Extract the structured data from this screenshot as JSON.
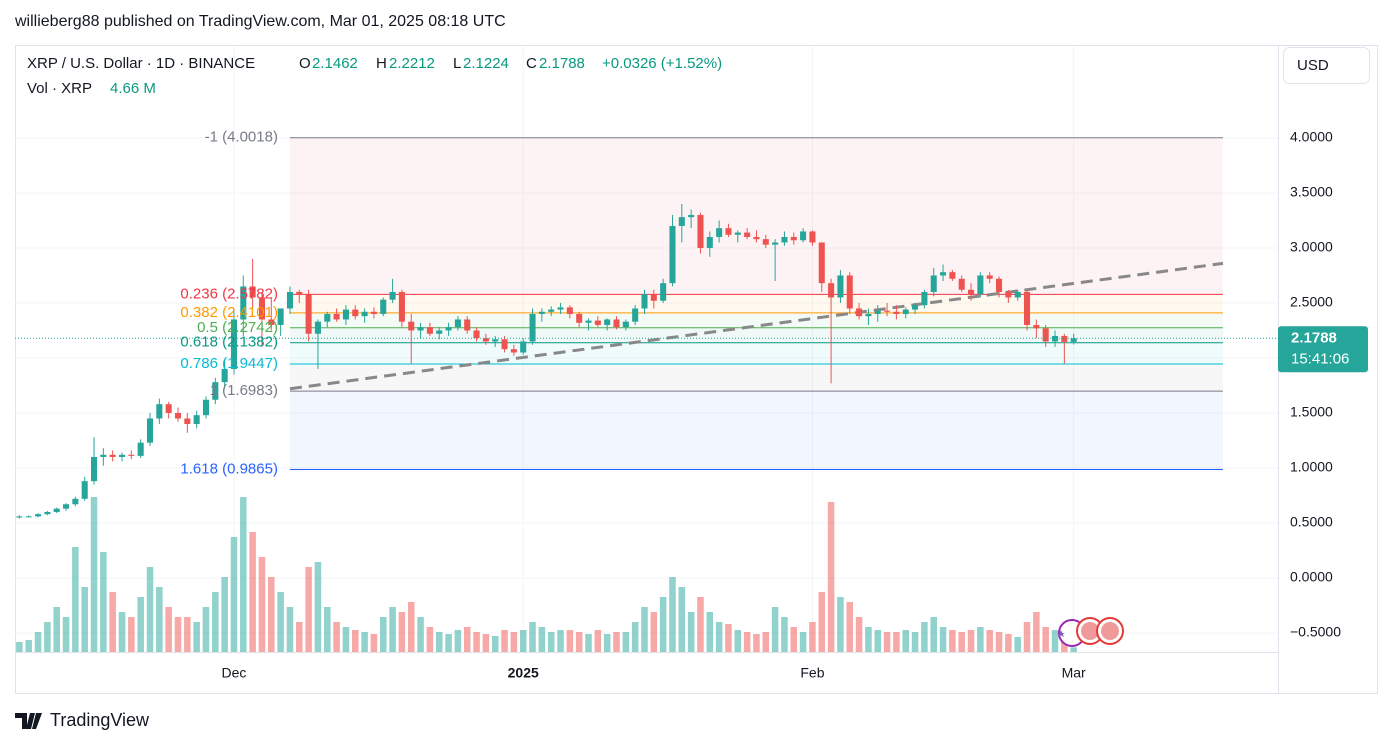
{
  "header": {
    "text": "willieberg88 published on TradingView.com, Mar 01, 2025 08:18 UTC"
  },
  "footer": {
    "logo": "TradingView"
  },
  "chart_data": {
    "type": "candlestick",
    "symbol": "XRP / U.S. Dollar · 1D · BINANCE",
    "ohlc_labels": [
      "O",
      "H",
      "L",
      "C"
    ],
    "change": "+0.0326 (+1.52%)",
    "volume_title": "Vol · XRP",
    "volume_value_label": "4.66 M",
    "currency": "USD",
    "countdown": "15:41:06",
    "up_color": "#26a69a",
    "down_color": "#ef5350",
    "grid": true,
    "xlim": [
      -23.47,
      111.9
    ],
    "ylim": [
      -0.673,
      4.827
    ],
    "xticks": [
      {
        "value": 0,
        "label": "Dec"
      },
      {
        "value": 31,
        "label": "2025"
      },
      {
        "value": 62,
        "label": "Feb"
      },
      {
        "value": 90,
        "label": "Mar"
      }
    ],
    "yticks": [
      {
        "value": -0.5,
        "label": "−0.5000"
      },
      {
        "value": 0,
        "label": "0.0000"
      },
      {
        "value": 0.5,
        "label": "0.5000"
      },
      {
        "value": 1,
        "label": "1.0000"
      },
      {
        "value": 1.5,
        "label": "1.5000"
      },
      {
        "value": 2,
        "label": "2.0000"
      },
      {
        "value": 2.5,
        "label": "2.5000"
      },
      {
        "value": 3,
        "label": "3.0000"
      },
      {
        "value": 3.5,
        "label": "3.5000"
      },
      {
        "value": 4,
        "label": "4.0000"
      }
    ],
    "fib_x": [
      6,
      106
    ],
    "fib_levels": [
      {
        "label": "-1 (4.0018)",
        "value": 4.0018,
        "color": "#787b86"
      },
      {
        "label": "0.236 (2.5782)",
        "value": 2.5782,
        "color": "#f23645"
      },
      {
        "label": "0.382 (2.4101)",
        "value": 2.4101,
        "color": "#ff9800"
      },
      {
        "label": "0.5 (2.2742)",
        "value": 2.2742,
        "color": "#4caf50"
      },
      {
        "label": "0.618 (2.1382)",
        "value": 2.1382,
        "color": "#089981"
      },
      {
        "label": "0.786 (1.9447)",
        "value": 1.9447,
        "color": "#00bcd4"
      },
      {
        "label": "1 (1.6983)",
        "value": 1.6983,
        "color": "#787b86"
      },
      {
        "label": "1.618 (0.9865)",
        "value": 0.9865,
        "color": "#2962ff"
      }
    ],
    "trend_line": {
      "x": [
        6,
        106
      ],
      "y": [
        1.72,
        2.86
      ],
      "color": "#888888"
    },
    "candles": [
      {
        "x": -23,
        "o": 0.55,
        "h": 0.57,
        "l": 0.54,
        "c": 0.56,
        "v": 10
      },
      {
        "x": -22,
        "o": 0.56,
        "h": 0.57,
        "l": 0.55,
        "c": 0.56,
        "v": 12
      },
      {
        "x": -21,
        "o": 0.56,
        "h": 0.59,
        "l": 0.55,
        "c": 0.58,
        "v": 20
      },
      {
        "x": -20,
        "o": 0.58,
        "h": 0.61,
        "l": 0.57,
        "c": 0.6,
        "v": 30
      },
      {
        "x": -19,
        "o": 0.6,
        "h": 0.64,
        "l": 0.59,
        "c": 0.63,
        "v": 45
      },
      {
        "x": -18,
        "o": 0.63,
        "h": 0.68,
        "l": 0.61,
        "c": 0.67,
        "v": 35
      },
      {
        "x": -17,
        "o": 0.67,
        "h": 0.74,
        "l": 0.65,
        "c": 0.72,
        "v": 105
      },
      {
        "x": -16,
        "o": 0.72,
        "h": 0.92,
        "l": 0.7,
        "c": 0.88,
        "v": 65
      },
      {
        "x": -15,
        "o": 0.88,
        "h": 1.28,
        "l": 0.85,
        "c": 1.1,
        "v": 155
      },
      {
        "x": -14,
        "o": 1.1,
        "h": 1.18,
        "l": 1.02,
        "c": 1.12,
        "v": 100
      },
      {
        "x": -13,
        "o": 1.12,
        "h": 1.16,
        "l": 1.06,
        "c": 1.1,
        "v": 60
      },
      {
        "x": -12,
        "o": 1.1,
        "h": 1.14,
        "l": 1.06,
        "c": 1.12,
        "v": 40
      },
      {
        "x": -11,
        "o": 1.12,
        "h": 1.16,
        "l": 1.08,
        "c": 1.11,
        "v": 35
      },
      {
        "x": -10,
        "o": 1.11,
        "h": 1.26,
        "l": 1.09,
        "c": 1.23,
        "v": 55
      },
      {
        "x": -9,
        "o": 1.23,
        "h": 1.5,
        "l": 1.2,
        "c": 1.45,
        "v": 85
      },
      {
        "x": -8,
        "o": 1.45,
        "h": 1.63,
        "l": 1.4,
        "c": 1.58,
        "v": 65
      },
      {
        "x": -7,
        "o": 1.58,
        "h": 1.6,
        "l": 1.45,
        "c": 1.5,
        "v": 45
      },
      {
        "x": -6,
        "o": 1.5,
        "h": 1.55,
        "l": 1.42,
        "c": 1.45,
        "v": 35
      },
      {
        "x": -5,
        "o": 1.45,
        "h": 1.5,
        "l": 1.32,
        "c": 1.4,
        "v": 35
      },
      {
        "x": -4,
        "o": 1.4,
        "h": 1.52,
        "l": 1.36,
        "c": 1.48,
        "v": 30
      },
      {
        "x": -3,
        "o": 1.48,
        "h": 1.65,
        "l": 1.45,
        "c": 1.62,
        "v": 45
      },
      {
        "x": -2,
        "o": 1.62,
        "h": 1.82,
        "l": 1.58,
        "c": 1.78,
        "v": 60
      },
      {
        "x": -1,
        "o": 1.78,
        "h": 1.98,
        "l": 1.72,
        "c": 1.9,
        "v": 75
      },
      {
        "x": 0,
        "o": 1.9,
        "h": 2.45,
        "l": 1.85,
        "c": 2.35,
        "v": 115
      },
      {
        "x": 1,
        "o": 2.35,
        "h": 2.75,
        "l": 2.2,
        "c": 2.65,
        "v": 155
      },
      {
        "x": 2,
        "o": 2.65,
        "h": 2.9,
        "l": 2.45,
        "c": 2.55,
        "v": 120
      },
      {
        "x": 3,
        "o": 2.55,
        "h": 2.6,
        "l": 2.1,
        "c": 2.35,
        "v": 95
      },
      {
        "x": 4,
        "o": 2.35,
        "h": 2.55,
        "l": 2.25,
        "c": 2.3,
        "v": 75
      },
      {
        "x": 5,
        "o": 2.3,
        "h": 2.45,
        "l": 2.2,
        "c": 2.45,
        "v": 60
      },
      {
        "x": 6,
        "o": 2.45,
        "h": 2.65,
        "l": 2.4,
        "c": 2.6,
        "v": 45
      },
      {
        "x": 7,
        "o": 2.6,
        "h": 2.62,
        "l": 2.5,
        "c": 2.58,
        "v": 30
      },
      {
        "x": 8,
        "o": 2.58,
        "h": 2.62,
        "l": 2.15,
        "c": 2.22,
        "v": 85
      },
      {
        "x": 9,
        "o": 2.22,
        "h": 2.35,
        "l": 1.9,
        "c": 2.33,
        "v": 90
      },
      {
        "x": 10,
        "o": 2.33,
        "h": 2.42,
        "l": 2.28,
        "c": 2.4,
        "v": 45
      },
      {
        "x": 11,
        "o": 2.4,
        "h": 2.45,
        "l": 2.33,
        "c": 2.35,
        "v": 30
      },
      {
        "x": 12,
        "o": 2.35,
        "h": 2.48,
        "l": 2.3,
        "c": 2.44,
        "v": 25
      },
      {
        "x": 13,
        "o": 2.44,
        "h": 2.48,
        "l": 2.35,
        "c": 2.38,
        "v": 22
      },
      {
        "x": 14,
        "o": 2.38,
        "h": 2.45,
        "l": 2.32,
        "c": 2.42,
        "v": 20
      },
      {
        "x": 15,
        "o": 2.42,
        "h": 2.46,
        "l": 2.36,
        "c": 2.4,
        "v": 18
      },
      {
        "x": 16,
        "o": 2.4,
        "h": 2.55,
        "l": 2.38,
        "c": 2.53,
        "v": 35
      },
      {
        "x": 17,
        "o": 2.53,
        "h": 2.72,
        "l": 2.5,
        "c": 2.6,
        "v": 45
      },
      {
        "x": 18,
        "o": 2.6,
        "h": 2.62,
        "l": 2.28,
        "c": 2.33,
        "v": 40
      },
      {
        "x": 19,
        "o": 2.33,
        "h": 2.4,
        "l": 1.95,
        "c": 2.25,
        "v": 50
      },
      {
        "x": 20,
        "o": 2.25,
        "h": 2.32,
        "l": 2.18,
        "c": 2.28,
        "v": 35
      },
      {
        "x": 21,
        "o": 2.28,
        "h": 2.32,
        "l": 2.2,
        "c": 2.22,
        "v": 25
      },
      {
        "x": 22,
        "o": 2.22,
        "h": 2.28,
        "l": 2.17,
        "c": 2.25,
        "v": 20
      },
      {
        "x": 23,
        "o": 2.25,
        "h": 2.32,
        "l": 2.2,
        "c": 2.28,
        "v": 18
      },
      {
        "x": 24,
        "o": 2.28,
        "h": 2.38,
        "l": 2.25,
        "c": 2.35,
        "v": 22
      },
      {
        "x": 25,
        "o": 2.35,
        "h": 2.38,
        "l": 2.22,
        "c": 2.25,
        "v": 25
      },
      {
        "x": 26,
        "o": 2.25,
        "h": 2.28,
        "l": 2.15,
        "c": 2.18,
        "v": 20
      },
      {
        "x": 27,
        "o": 2.18,
        "h": 2.22,
        "l": 2.12,
        "c": 2.15,
        "v": 18
      },
      {
        "x": 28,
        "o": 2.15,
        "h": 2.2,
        "l": 2.1,
        "c": 2.17,
        "v": 16
      },
      {
        "x": 29,
        "o": 2.17,
        "h": 2.2,
        "l": 2.05,
        "c": 2.08,
        "v": 22
      },
      {
        "x": 30,
        "o": 2.08,
        "h": 2.12,
        "l": 2.02,
        "c": 2.05,
        "v": 20
      },
      {
        "x": 31,
        "o": 2.05,
        "h": 2.18,
        "l": 2.03,
        "c": 2.15,
        "v": 22
      },
      {
        "x": 32,
        "o": 2.15,
        "h": 2.45,
        "l": 2.12,
        "c": 2.4,
        "v": 30
      },
      {
        "x": 33,
        "o": 2.4,
        "h": 2.45,
        "l": 2.33,
        "c": 2.42,
        "v": 25
      },
      {
        "x": 34,
        "o": 2.42,
        "h": 2.47,
        "l": 2.38,
        "c": 2.44,
        "v": 20
      },
      {
        "x": 35,
        "o": 2.44,
        "h": 2.5,
        "l": 2.4,
        "c": 2.46,
        "v": 22
      },
      {
        "x": 36,
        "o": 2.46,
        "h": 2.48,
        "l": 2.36,
        "c": 2.4,
        "v": 22
      },
      {
        "x": 37,
        "o": 2.4,
        "h": 2.42,
        "l": 2.28,
        "c": 2.32,
        "v": 20
      },
      {
        "x": 38,
        "o": 2.32,
        "h": 2.36,
        "l": 2.25,
        "c": 2.34,
        "v": 18
      },
      {
        "x": 39,
        "o": 2.34,
        "h": 2.38,
        "l": 2.28,
        "c": 2.3,
        "v": 22
      },
      {
        "x": 40,
        "o": 2.3,
        "h": 2.36,
        "l": 2.25,
        "c": 2.35,
        "v": 18
      },
      {
        "x": 41,
        "o": 2.35,
        "h": 2.38,
        "l": 2.26,
        "c": 2.28,
        "v": 20
      },
      {
        "x": 42,
        "o": 2.28,
        "h": 2.35,
        "l": 2.25,
        "c": 2.33,
        "v": 20
      },
      {
        "x": 43,
        "o": 2.33,
        "h": 2.48,
        "l": 2.3,
        "c": 2.45,
        "v": 30
      },
      {
        "x": 44,
        "o": 2.45,
        "h": 2.62,
        "l": 2.4,
        "c": 2.58,
        "v": 45
      },
      {
        "x": 45,
        "o": 2.58,
        "h": 2.62,
        "l": 2.45,
        "c": 2.52,
        "v": 40
      },
      {
        "x": 46,
        "o": 2.52,
        "h": 2.72,
        "l": 2.5,
        "c": 2.68,
        "v": 55
      },
      {
        "x": 47,
        "o": 2.68,
        "h": 3.3,
        "l": 2.65,
        "c": 3.2,
        "v": 75
      },
      {
        "x": 48,
        "o": 3.2,
        "h": 3.4,
        "l": 3.05,
        "c": 3.28,
        "v": 65
      },
      {
        "x": 49,
        "o": 3.28,
        "h": 3.35,
        "l": 3.18,
        "c": 3.3,
        "v": 40
      },
      {
        "x": 50,
        "o": 3.3,
        "h": 3.32,
        "l": 2.95,
        "c": 3.0,
        "v": 55
      },
      {
        "x": 51,
        "o": 3.0,
        "h": 3.15,
        "l": 2.92,
        "c": 3.1,
        "v": 40
      },
      {
        "x": 52,
        "o": 3.1,
        "h": 3.25,
        "l": 3.05,
        "c": 3.18,
        "v": 30
      },
      {
        "x": 53,
        "o": 3.18,
        "h": 3.22,
        "l": 3.1,
        "c": 3.12,
        "v": 28
      },
      {
        "x": 54,
        "o": 3.12,
        "h": 3.16,
        "l": 3.05,
        "c": 3.14,
        "v": 22
      },
      {
        "x": 55,
        "o": 3.14,
        "h": 3.18,
        "l": 3.08,
        "c": 3.1,
        "v": 20
      },
      {
        "x": 56,
        "o": 3.1,
        "h": 3.16,
        "l": 3.05,
        "c": 3.08,
        "v": 18
      },
      {
        "x": 57,
        "o": 3.08,
        "h": 3.12,
        "l": 3.0,
        "c": 3.03,
        "v": 20
      },
      {
        "x": 58,
        "o": 3.03,
        "h": 3.08,
        "l": 2.7,
        "c": 3.05,
        "v": 45
      },
      {
        "x": 59,
        "o": 3.05,
        "h": 3.15,
        "l": 3.02,
        "c": 3.1,
        "v": 35
      },
      {
        "x": 60,
        "o": 3.1,
        "h": 3.14,
        "l": 3.03,
        "c": 3.07,
        "v": 25
      },
      {
        "x": 61,
        "o": 3.07,
        "h": 3.18,
        "l": 3.05,
        "c": 3.15,
        "v": 20
      },
      {
        "x": 62,
        "o": 3.15,
        "h": 3.16,
        "l": 3.02,
        "c": 3.05,
        "v": 30
      },
      {
        "x": 63,
        "o": 3.05,
        "h": 3.05,
        "l": 2.6,
        "c": 2.68,
        "v": 60
      },
      {
        "x": 64,
        "o": 2.68,
        "h": 2.72,
        "l": 1.77,
        "c": 2.55,
        "v": 150
      },
      {
        "x": 65,
        "o": 2.55,
        "h": 2.8,
        "l": 2.5,
        "c": 2.75,
        "v": 55
      },
      {
        "x": 66,
        "o": 2.75,
        "h": 2.78,
        "l": 2.4,
        "c": 2.45,
        "v": 50
      },
      {
        "x": 67,
        "o": 2.45,
        "h": 2.5,
        "l": 2.35,
        "c": 2.38,
        "v": 35
      },
      {
        "x": 68,
        "o": 2.38,
        "h": 2.45,
        "l": 2.3,
        "c": 2.4,
        "v": 25
      },
      {
        "x": 69,
        "o": 2.4,
        "h": 2.48,
        "l": 2.33,
        "c": 2.43,
        "v": 22
      },
      {
        "x": 70,
        "o": 2.43,
        "h": 2.5,
        "l": 2.38,
        "c": 2.42,
        "v": 20
      },
      {
        "x": 71,
        "o": 2.42,
        "h": 2.48,
        "l": 2.35,
        "c": 2.4,
        "v": 20
      },
      {
        "x": 72,
        "o": 2.4,
        "h": 2.46,
        "l": 2.36,
        "c": 2.44,
        "v": 22
      },
      {
        "x": 73,
        "o": 2.44,
        "h": 2.5,
        "l": 2.4,
        "c": 2.48,
        "v": 20
      },
      {
        "x": 74,
        "o": 2.48,
        "h": 2.62,
        "l": 2.45,
        "c": 2.6,
        "v": 30
      },
      {
        "x": 75,
        "o": 2.6,
        "h": 2.82,
        "l": 2.56,
        "c": 2.75,
        "v": 35
      },
      {
        "x": 76,
        "o": 2.75,
        "h": 2.85,
        "l": 2.7,
        "c": 2.78,
        "v": 25
      },
      {
        "x": 77,
        "o": 2.78,
        "h": 2.8,
        "l": 2.7,
        "c": 2.72,
        "v": 22
      },
      {
        "x": 78,
        "o": 2.72,
        "h": 2.75,
        "l": 2.6,
        "c": 2.62,
        "v": 20
      },
      {
        "x": 79,
        "o": 2.62,
        "h": 2.68,
        "l": 2.52,
        "c": 2.58,
        "v": 22
      },
      {
        "x": 80,
        "o": 2.58,
        "h": 2.78,
        "l": 2.55,
        "c": 2.75,
        "v": 25
      },
      {
        "x": 81,
        "o": 2.75,
        "h": 2.78,
        "l": 2.68,
        "c": 2.72,
        "v": 22
      },
      {
        "x": 82,
        "o": 2.72,
        "h": 2.74,
        "l": 2.55,
        "c": 2.6,
        "v": 20
      },
      {
        "x": 83,
        "o": 2.6,
        "h": 2.62,
        "l": 2.5,
        "c": 2.55,
        "v": 18
      },
      {
        "x": 84,
        "o": 2.55,
        "h": 2.62,
        "l": 2.52,
        "c": 2.6,
        "v": 15
      },
      {
        "x": 85,
        "o": 2.6,
        "h": 2.62,
        "l": 2.25,
        "c": 2.3,
        "v": 30
      },
      {
        "x": 86,
        "o": 2.3,
        "h": 2.35,
        "l": 2.18,
        "c": 2.27,
        "v": 40
      },
      {
        "x": 87,
        "o": 2.27,
        "h": 2.3,
        "l": 2.1,
        "c": 2.15,
        "v": 25
      },
      {
        "x": 88,
        "o": 2.15,
        "h": 2.25,
        "l": 2.1,
        "c": 2.2,
        "v": 22
      },
      {
        "x": 89,
        "o": 2.2,
        "h": 2.22,
        "l": 1.95,
        "c": 2.1462,
        "v": 28
      },
      {
        "x": 90,
        "o": 2.1462,
        "h": 2.2212,
        "l": 2.1224,
        "c": 2.1788,
        "v": 4.66
      }
    ]
  }
}
